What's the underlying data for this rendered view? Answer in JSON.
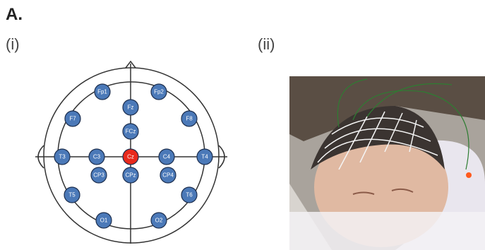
{
  "header": {
    "panel": "A.",
    "left_label": "(i)",
    "right_label": "(ii)"
  },
  "nodes": [
    {
      "label": "Fp1"
    },
    {
      "label": "Fp2"
    },
    {
      "label": "Fz"
    },
    {
      "label": "F7"
    },
    {
      "label": "F8"
    },
    {
      "label": "FCz"
    },
    {
      "label": "T3"
    },
    {
      "label": "C3"
    },
    {
      "label": "Cz"
    },
    {
      "label": "C4"
    },
    {
      "label": "T4"
    },
    {
      "label": "CP3"
    },
    {
      "label": "CPz"
    },
    {
      "label": "CP4"
    },
    {
      "label": "T5"
    },
    {
      "label": "T6"
    },
    {
      "label": "O1"
    },
    {
      "label": "O2"
    }
  ]
}
